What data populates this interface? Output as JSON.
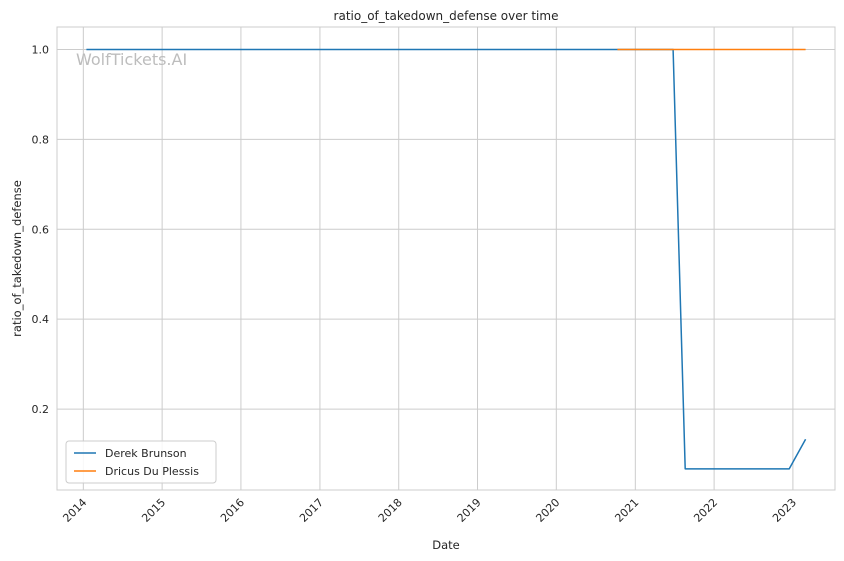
{
  "watermark": "WolfTickets.AI",
  "chart_data": {
    "type": "line",
    "title": "ratio_of_takedown_defense over time",
    "xlabel": "Date",
    "ylabel": "ratio_of_takedown_defense",
    "x_ticks": [
      "2014",
      "2015",
      "2016",
      "2017",
      "2018",
      "2019",
      "2020",
      "2021",
      "2022",
      "2023"
    ],
    "y_ticks": [
      "0.2",
      "0.4",
      "0.6",
      "0.8",
      "1.0"
    ],
    "xlim": [
      "2013-09-01",
      "2023-07-15"
    ],
    "ylim": [
      0.02,
      1.05
    ],
    "grid": true,
    "legend_position": "lower-left",
    "series": [
      {
        "name": "Derek Brunson",
        "color": "#1f77b4",
        "points": [
          {
            "x": "2014-01-15",
            "y": 1.0
          },
          {
            "x": "2021-06-25",
            "y": 1.0
          },
          {
            "x": "2021-08-20",
            "y": 0.067
          },
          {
            "x": "2022-12-15",
            "y": 0.067
          },
          {
            "x": "2023-03-01",
            "y": 0.133
          }
        ]
      },
      {
        "name": "Dricus Du Plessis",
        "color": "#ff7f0e",
        "points": [
          {
            "x": "2020-10-10",
            "y": 1.0
          },
          {
            "x": "2023-03-01",
            "y": 1.0
          }
        ]
      }
    ]
  }
}
